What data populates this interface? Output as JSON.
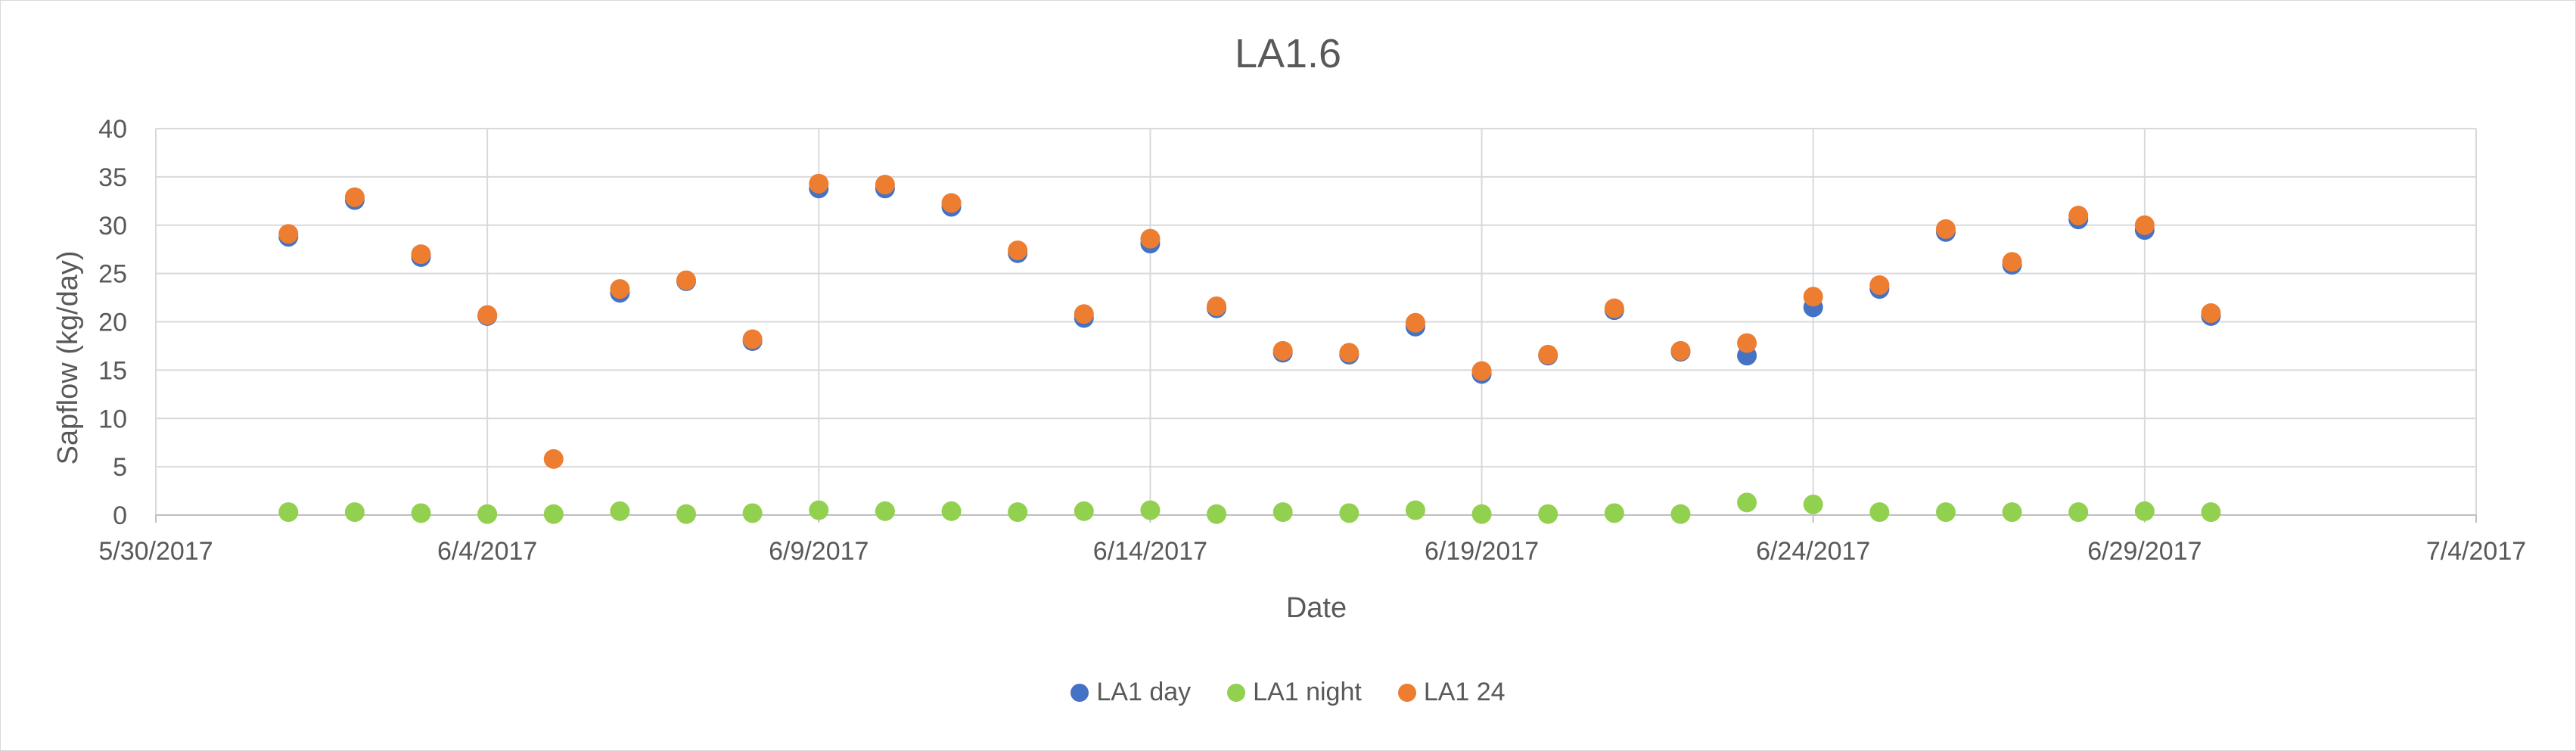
{
  "chart_data": {
    "type": "scatter",
    "title": "LA1.6",
    "xlabel": "Date",
    "ylabel": "Sapflow (kg/day)",
    "ylim": [
      0,
      40
    ],
    "yticks": [
      0,
      5,
      10,
      15,
      20,
      25,
      30,
      35,
      40
    ],
    "xlim": [
      "2017-05-30",
      "2017-07-04"
    ],
    "xticks": [
      "5/30/2017",
      "6/4/2017",
      "6/9/2017",
      "6/14/2017",
      "6/19/2017",
      "6/24/2017",
      "6/29/2017",
      "7/4/2017"
    ],
    "grid": true,
    "legend_position": "bottom",
    "x": [
      "2017-06-01",
      "2017-06-02",
      "2017-06-03",
      "2017-06-04",
      "2017-06-05",
      "2017-06-06",
      "2017-06-07",
      "2017-06-08",
      "2017-06-09",
      "2017-06-10",
      "2017-06-11",
      "2017-06-12",
      "2017-06-13",
      "2017-06-14",
      "2017-06-15",
      "2017-06-16",
      "2017-06-17",
      "2017-06-18",
      "2017-06-19",
      "2017-06-20",
      "2017-06-21",
      "2017-06-22",
      "2017-06-23",
      "2017-06-24",
      "2017-06-25",
      "2017-06-26",
      "2017-06-27",
      "2017-06-28",
      "2017-06-29",
      "2017-06-30"
    ],
    "series": [
      {
        "name": "LA1 day",
        "color": "#4472c4",
        "values": [
          28.8,
          32.6,
          26.7,
          20.6,
          null,
          23.0,
          24.2,
          18.0,
          33.8,
          33.8,
          31.9,
          27.1,
          20.4,
          28.1,
          21.4,
          16.8,
          16.6,
          19.5,
          14.6,
          16.5,
          21.2,
          16.9,
          16.5,
          21.5,
          23.4,
          29.3,
          25.9,
          30.6,
          29.5,
          20.6
        ]
      },
      {
        "name": "LA1 night",
        "color": "#92d050",
        "values": [
          0.3,
          0.3,
          0.2,
          0.1,
          0.1,
          0.4,
          0.1,
          0.2,
          0.5,
          0.4,
          0.4,
          0.3,
          0.4,
          0.5,
          0.1,
          0.3,
          0.2,
          0.5,
          0.1,
          0.1,
          0.2,
          0.1,
          1.3,
          1.1,
          0.3,
          0.3,
          0.3,
          0.3,
          0.4,
          0.3
        ]
      },
      {
        "name": "LA1 24",
        "color": "#ed7d31",
        "values": [
          29.1,
          32.9,
          27.0,
          20.7,
          5.8,
          23.4,
          24.3,
          18.2,
          34.3,
          34.2,
          32.3,
          27.4,
          20.8,
          28.6,
          21.6,
          17.0,
          16.8,
          19.9,
          14.9,
          16.6,
          21.4,
          17.0,
          17.8,
          22.6,
          23.8,
          29.6,
          26.2,
          31.0,
          30.0,
          20.9
        ]
      }
    ]
  }
}
